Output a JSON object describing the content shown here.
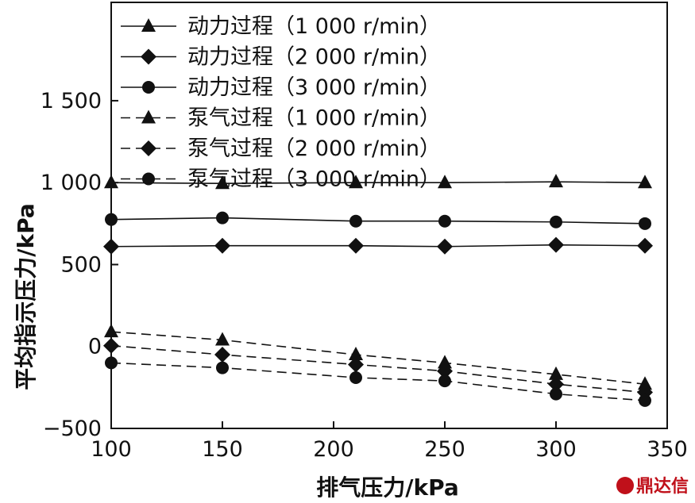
{
  "chart_data": {
    "type": "line",
    "title": "",
    "xlabel": "排气压力/kPa",
    "ylabel": "平均指示压力/kPa",
    "xlim": [
      100,
      350
    ],
    "ylim": [
      -500,
      2100
    ],
    "xticks": [
      100,
      150,
      200,
      250,
      300,
      350
    ],
    "yticks": [
      -500,
      0,
      500,
      1000,
      1500
    ],
    "ytick_labels": [
      "−500",
      "0",
      "500",
      "1 000",
      "1 500"
    ],
    "x": [
      100,
      150,
      210,
      250,
      300,
      340
    ],
    "grid": false,
    "legend_position": "top-left",
    "series": [
      {
        "name": "动力过程（1 000 r/min）",
        "marker": "triangle",
        "dash": "solid",
        "values": [
          1000,
          995,
          1000,
          1000,
          1005,
          1000
        ]
      },
      {
        "name": "动力过程（2 000 r/min）",
        "marker": "diamond",
        "dash": "solid",
        "values": [
          610,
          615,
          615,
          610,
          620,
          615
        ]
      },
      {
        "name": "动力过程（3 000 r/min）",
        "marker": "circle",
        "dash": "solid",
        "values": [
          775,
          785,
          765,
          765,
          760,
          750
        ]
      },
      {
        "name": "泵气过程（1 000 r/min）",
        "marker": "triangle",
        "dash": "dashed",
        "values": [
          90,
          40,
          -50,
          -100,
          -170,
          -230
        ]
      },
      {
        "name": "泵气过程（2 000 r/min）",
        "marker": "diamond",
        "dash": "dashed",
        "values": [
          5,
          -50,
          -110,
          -150,
          -230,
          -280
        ]
      },
      {
        "name": "泵气过程（3 000 r/min）",
        "marker": "circle",
        "dash": "dashed",
        "values": [
          -100,
          -130,
          -190,
          -210,
          -290,
          -330
        ]
      }
    ]
  },
  "watermark": {
    "text": "鼎达信",
    "color": "#c0101a"
  }
}
